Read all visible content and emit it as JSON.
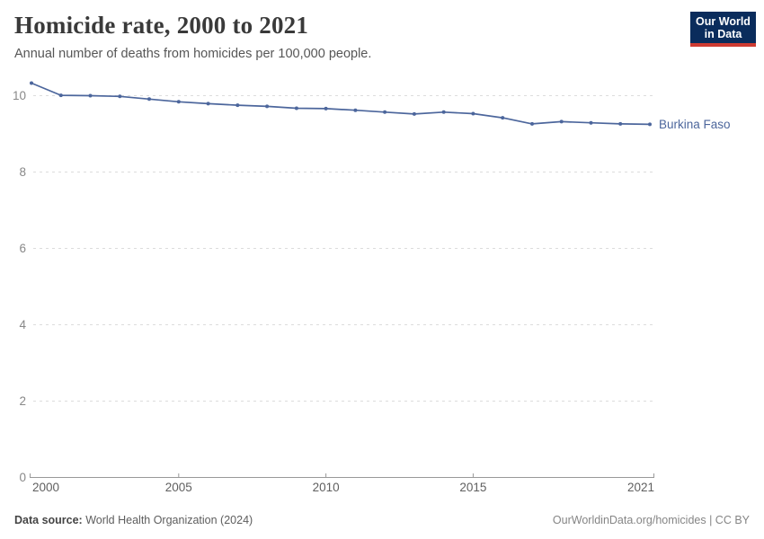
{
  "header": {
    "title": "Homicide rate, 2000 to 2021",
    "subtitle": "Annual number of deaths from homicides per 100,000 people."
  },
  "logo": {
    "line1": "Our World",
    "line2": "in Data",
    "bg_color": "#0a2c5c",
    "stripe_color": "#ce3b32"
  },
  "chart_data": {
    "type": "line",
    "title": "Homicide rate, 2000 to 2021",
    "ylabel": "",
    "xlabel": "",
    "grid": "horizontal-dashed",
    "legend_position": "end-of-line-label",
    "xlim": [
      2000,
      2021
    ],
    "ylim": [
      0,
      10.55
    ],
    "yticks": [
      0,
      2,
      4,
      6,
      8,
      10
    ],
    "xticks": [
      2000,
      2005,
      2010,
      2015,
      2021
    ],
    "x": [
      2000,
      2001,
      2002,
      2003,
      2004,
      2005,
      2006,
      2007,
      2008,
      2009,
      2010,
      2011,
      2012,
      2013,
      2014,
      2015,
      2016,
      2017,
      2018,
      2019,
      2020,
      2021
    ],
    "series": [
      {
        "name": "Burkina Faso",
        "color": "#4c669c",
        "values": [
          10.33,
          10.01,
          10.0,
          9.98,
          9.91,
          9.84,
          9.79,
          9.75,
          9.72,
          9.67,
          9.66,
          9.62,
          9.57,
          9.52,
          9.57,
          9.53,
          9.42,
          9.26,
          9.32,
          9.29,
          9.26,
          9.25
        ]
      }
    ],
    "colors": {
      "gridline": "#dcdcdc",
      "axis": "#999999",
      "y_tick_label": "#888888",
      "x_tick_label": "#5f5f5f"
    }
  },
  "footer": {
    "source_label": "Data source:",
    "source_value": "World Health Organization (2024)",
    "credit": "OurWorldinData.org/homicides | CC BY"
  }
}
